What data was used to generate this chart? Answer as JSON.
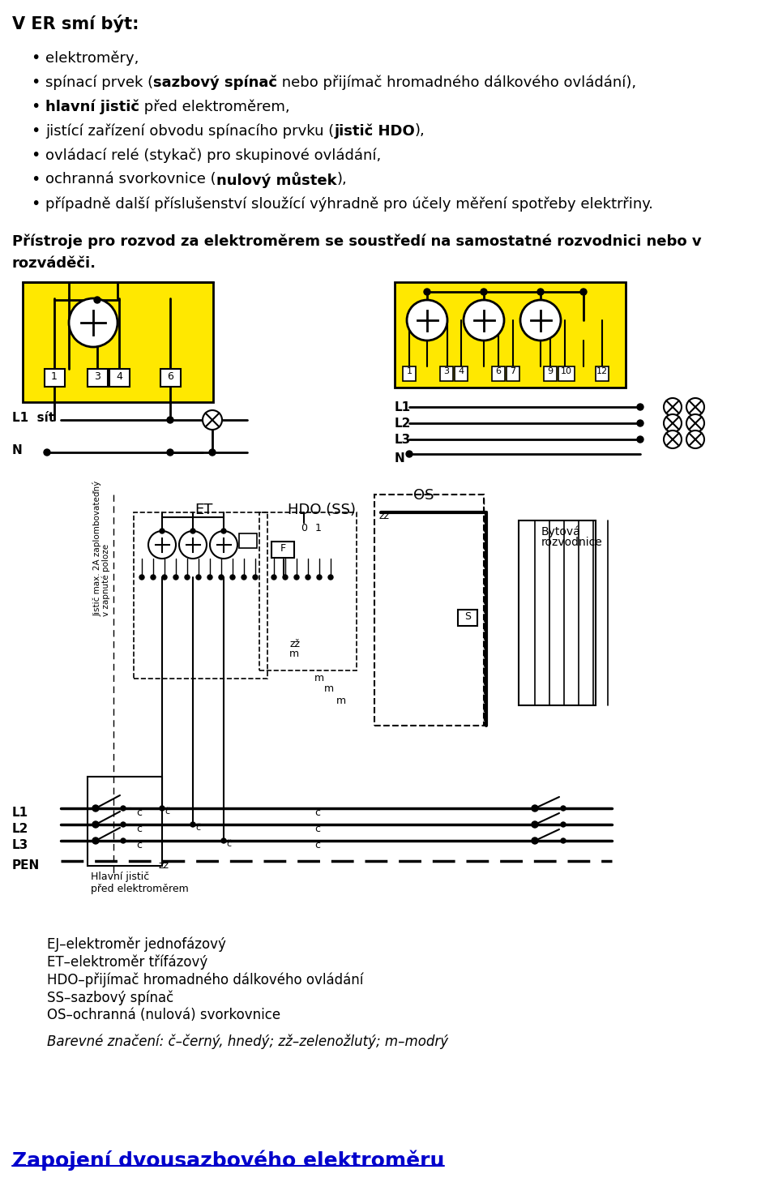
{
  "bg_color": "#ffffff",
  "title_text": "V ER smí být:",
  "bullet_texts": [
    [
      [
        "elektroměry,",
        false
      ]
    ],
    [
      [
        "spínací prvek (",
        false
      ],
      [
        "sazbový spínač",
        true
      ],
      [
        " nebo přijímač hromadného dálkového ovládání),",
        false
      ]
    ],
    [
      [
        "hlavní jistič",
        true
      ],
      [
        " před elektroměrem,",
        false
      ]
    ],
    [
      [
        "jistící zařízení obvodu spínacího prvku (",
        false
      ],
      [
        "jistič HDO",
        true
      ],
      [
        "),",
        false
      ]
    ],
    [
      [
        "ovládací relé (stykač) pro skupinové ovládání,",
        false
      ]
    ],
    [
      [
        "ochranná svorkovnice (",
        false
      ],
      [
        "nulový můstek",
        true
      ],
      [
        "),",
        false
      ]
    ],
    [
      [
        "případně další příslušenství sloužící výhradně pro účely měření spotřeby elektrřiny.",
        false
      ]
    ]
  ],
  "para_line1": "Přístroje pro rozvod za elektroměrem se soustředí na samostatné rozvodnici nebo v",
  "para_line2": "rozváděči.",
  "legend_items": [
    "EJ–elektroměr jednofázový",
    "ET–elektroměr třífázový",
    "HDO–přijímač hromadného dálkového ovládání",
    "SS–sazbový spínač",
    "OS–ochranná (nulová) svorkovnice"
  ],
  "color_legend": "Barevné značení: č–černý, hnedý; zž–zelenožlutý; m–modrý",
  "footer_title": "Zapojení dvousazbového elektroměru",
  "yellow_color": "#FFE800",
  "blue_color": "#0000CC"
}
